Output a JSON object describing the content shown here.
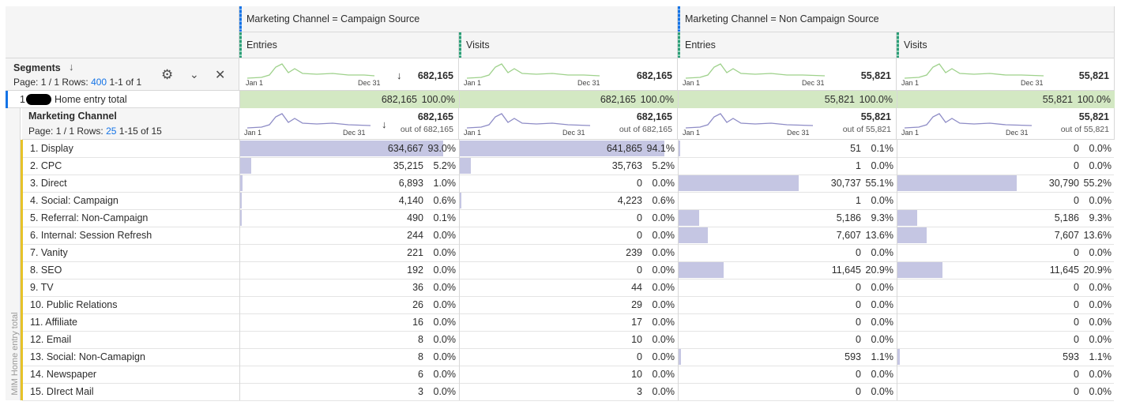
{
  "segments_panel": {
    "title": "Segments",
    "sort_icon": "arrow-down-icon",
    "page": "Page: 1 / 1",
    "rows_label": "Rows:",
    "rows_value": "400",
    "range": "1-1 of 1"
  },
  "segment_groups": [
    {
      "label": "Marketing Channel = Campaign Source"
    },
    {
      "label": "Marketing Channel = Non Campaign Source"
    }
  ],
  "metric_columns": [
    {
      "label": "Entries",
      "total": "682,165",
      "sorted": true,
      "dim_total": "682,165",
      "dim_out_of": "out of 682,165",
      "seg_value": "682,165",
      "seg_pct": "100.0%"
    },
    {
      "label": "Visits",
      "total": "682,165",
      "sorted": false,
      "dim_total": "682,165",
      "dim_out_of": "out of 682,165",
      "seg_value": "682,165",
      "seg_pct": "100.0%"
    },
    {
      "label": "Entries",
      "total": "55,821",
      "sorted": false,
      "dim_total": "55,821",
      "dim_out_of": "out of 55,821",
      "seg_value": "55,821",
      "seg_pct": "100.0%"
    },
    {
      "label": "Visits",
      "total": "55,821",
      "sorted": false,
      "dim_total": "55,821",
      "dim_out_of": "out of 55,821",
      "seg_value": "55,821",
      "seg_pct": "100.0%"
    }
  ],
  "sparkline": {
    "start": "Jan 1",
    "end": "Dec 31"
  },
  "segment_row": {
    "index": "1",
    "label": "Home entry total"
  },
  "side_label": "MIM Home entry total",
  "dimension": {
    "title": "Marketing Channel",
    "page": "Page: 1 / 1",
    "rows_label": "Rows:",
    "rows_value": "25",
    "range": "1-15 of 15"
  },
  "rows": [
    {
      "label": "1. Display",
      "cells": [
        [
          "634,667",
          "93.0%",
          0.93
        ],
        [
          "641,865",
          "94.1%",
          0.941
        ],
        [
          "51",
          "0.1%",
          0.001
        ],
        [
          "0",
          "0.0%",
          0
        ]
      ]
    },
    {
      "label": "2. CPC",
      "cells": [
        [
          "35,215",
          "5.2%",
          0.052
        ],
        [
          "35,763",
          "5.2%",
          0.052
        ],
        [
          "1",
          "0.0%",
          0
        ],
        [
          "0",
          "0.0%",
          0
        ]
      ]
    },
    {
      "label": "3. Direct",
      "cells": [
        [
          "6,893",
          "1.0%",
          0.01
        ],
        [
          "0",
          "0.0%",
          0
        ],
        [
          "30,737",
          "55.1%",
          0.551
        ],
        [
          "30,790",
          "55.2%",
          0.552
        ]
      ]
    },
    {
      "label": "4. Social: Campaign",
      "cells": [
        [
          "4,140",
          "0.6%",
          0.006
        ],
        [
          "4,223",
          "0.6%",
          0.006
        ],
        [
          "1",
          "0.0%",
          0
        ],
        [
          "0",
          "0.0%",
          0
        ]
      ]
    },
    {
      "label": "5. Referral: Non-Campaign",
      "cells": [
        [
          "490",
          "0.1%",
          0.001
        ],
        [
          "0",
          "0.0%",
          0
        ],
        [
          "5,186",
          "9.3%",
          0.093
        ],
        [
          "5,186",
          "9.3%",
          0.093
        ]
      ]
    },
    {
      "label": "6. Internal: Session Refresh",
      "cells": [
        [
          "244",
          "0.0%",
          0
        ],
        [
          "0",
          "0.0%",
          0
        ],
        [
          "7,607",
          "13.6%",
          0.136
        ],
        [
          "7,607",
          "13.6%",
          0.136
        ]
      ]
    },
    {
      "label": "7. Vanity",
      "cells": [
        [
          "221",
          "0.0%",
          0
        ],
        [
          "239",
          "0.0%",
          0
        ],
        [
          "0",
          "0.0%",
          0
        ],
        [
          "0",
          "0.0%",
          0
        ]
      ]
    },
    {
      "label": "8. SEO",
      "cells": [
        [
          "192",
          "0.0%",
          0
        ],
        [
          "0",
          "0.0%",
          0
        ],
        [
          "11,645",
          "20.9%",
          0.209
        ],
        [
          "11,645",
          "20.9%",
          0.209
        ]
      ]
    },
    {
      "label": "9. TV",
      "cells": [
        [
          "36",
          "0.0%",
          0
        ],
        [
          "44",
          "0.0%",
          0
        ],
        [
          "0",
          "0.0%",
          0
        ],
        [
          "0",
          "0.0%",
          0
        ]
      ]
    },
    {
      "label": "10. Public Relations",
      "cells": [
        [
          "26",
          "0.0%",
          0
        ],
        [
          "29",
          "0.0%",
          0
        ],
        [
          "0",
          "0.0%",
          0
        ],
        [
          "0",
          "0.0%",
          0
        ]
      ]
    },
    {
      "label": "11. Affiliate",
      "cells": [
        [
          "16",
          "0.0%",
          0
        ],
        [
          "17",
          "0.0%",
          0
        ],
        [
          "0",
          "0.0%",
          0
        ],
        [
          "0",
          "0.0%",
          0
        ]
      ]
    },
    {
      "label": "12. Email",
      "cells": [
        [
          "8",
          "0.0%",
          0
        ],
        [
          "10",
          "0.0%",
          0
        ],
        [
          "0",
          "0.0%",
          0
        ],
        [
          "0",
          "0.0%",
          0
        ]
      ]
    },
    {
      "label": "13. Social: Non-Camapign",
      "cells": [
        [
          "8",
          "0.0%",
          0
        ],
        [
          "0",
          "0.0%",
          0
        ],
        [
          "593",
          "1.1%",
          0.011
        ],
        [
          "593",
          "1.1%",
          0.011
        ]
      ]
    },
    {
      "label": "14. Newspaper",
      "cells": [
        [
          "6",
          "0.0%",
          0
        ],
        [
          "10",
          "0.0%",
          0
        ],
        [
          "0",
          "0.0%",
          0
        ],
        [
          "0",
          "0.0%",
          0
        ]
      ]
    },
    {
      "label": "15. DIrect Mail",
      "cells": [
        [
          "3",
          "0.0%",
          0
        ],
        [
          "3",
          "0.0%",
          0
        ],
        [
          "0",
          "0.0%",
          0
        ],
        [
          "0",
          "0.0%",
          0
        ]
      ]
    }
  ],
  "colors": {
    "bar": "#c5c6e3",
    "segment_fill": "#d3e8c3",
    "accent": "#1473e6",
    "row_marker": "#e6c229"
  }
}
